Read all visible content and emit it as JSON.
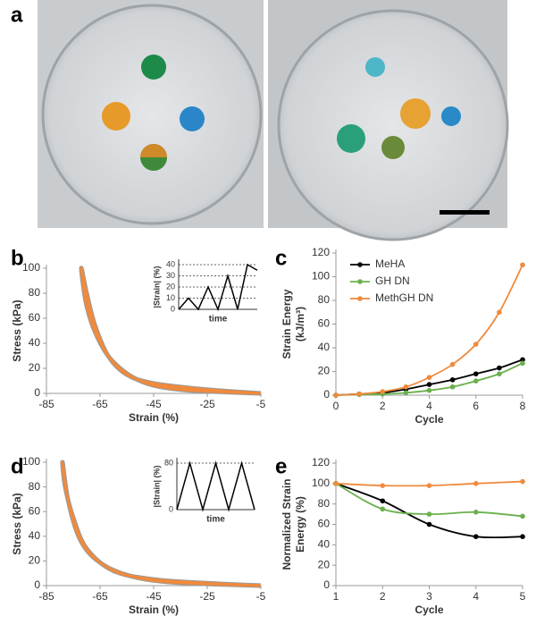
{
  "photo_panel": {
    "label": "a"
  },
  "chart_data": [
    {
      "type": "line",
      "panel_label": "b",
      "xlabel": "Strain (%)",
      "ylabel": "Stress (kPa)",
      "xlim": [
        -85,
        -5
      ],
      "xticks": [
        -85,
        -65,
        -45,
        -25,
        -5
      ],
      "ylim": [
        0,
        100
      ],
      "yticks": [
        0,
        20,
        40,
        60,
        80,
        100
      ],
      "series": [
        {
          "color": "#f08a3c",
          "x": [
            -5,
            -25,
            -45,
            -55,
            -62,
            -67,
            -70,
            -72,
            -70,
            -66,
            -60,
            -50,
            -35,
            -5
          ],
          "values": [
            0,
            3,
            8,
            15,
            30,
            55,
            80,
            100,
            70,
            45,
            25,
            10,
            3,
            0
          ]
        }
      ],
      "inset": {
        "ylabel": "|Strain| (%)",
        "xlabel": "time",
        "ylim": [
          0,
          40
        ],
        "yticks": [
          0,
          10,
          20,
          30,
          40
        ],
        "values": [
          0,
          10,
          0,
          20,
          0,
          30,
          0,
          40,
          35
        ]
      }
    },
    {
      "type": "line",
      "panel_label": "c",
      "xlabel": "Cycle",
      "ylabel": [
        "Strain Energy",
        "(kJ/m³)"
      ],
      "x": [
        0,
        1,
        2,
        3,
        4,
        5,
        6,
        7,
        8
      ],
      "xlim": [
        0,
        8
      ],
      "xticks": [
        0,
        2,
        4,
        6,
        8
      ],
      "ylim": [
        0,
        120
      ],
      "yticks": [
        0,
        20,
        40,
        60,
        80,
        100,
        120
      ],
      "legend": "upper left",
      "series": [
        {
          "name": "MeHA",
          "color": "#000000",
          "values": [
            0,
            1,
            2,
            5,
            9,
            13,
            18,
            23,
            30
          ]
        },
        {
          "name": "GH DN",
          "color": "#6ab04c",
          "values": [
            0,
            0.5,
            1,
            2,
            4,
            7,
            12,
            18,
            27
          ]
        },
        {
          "name": "MethGH DN",
          "color": "#f08a3c",
          "values": [
            0,
            1,
            3,
            7,
            15,
            26,
            43,
            70,
            110
          ]
        }
      ]
    },
    {
      "type": "line",
      "panel_label": "d",
      "xlabel": "Strain (%)",
      "ylabel": "Stress (kPa)",
      "xlim": [
        -85,
        -5
      ],
      "xticks": [
        -85,
        -65,
        -45,
        -25,
        -5
      ],
      "ylim": [
        0,
        100
      ],
      "yticks": [
        0,
        20,
        40,
        60,
        80,
        100
      ],
      "series": [
        {
          "color": "#f08a3c",
          "x": [
            -5,
            -25,
            -45,
            -60,
            -70,
            -75,
            -78,
            -79,
            -77,
            -73,
            -67,
            -57,
            -40,
            -5
          ],
          "values": [
            0,
            2,
            5,
            12,
            30,
            55,
            80,
            100,
            70,
            40,
            22,
            10,
            3,
            0
          ]
        }
      ],
      "inset": {
        "ylabel": "|Strain| (%)",
        "xlabel": "time",
        "ylim": [
          0,
          80
        ],
        "yticks": [
          0,
          80
        ],
        "values": [
          0,
          80,
          0,
          80,
          0,
          80,
          0
        ]
      }
    },
    {
      "type": "line",
      "panel_label": "e",
      "xlabel": "Cycle",
      "ylabel": [
        "Normalized Strain",
        "Energy (%)"
      ],
      "x": [
        1,
        2,
        3,
        4,
        5
      ],
      "xlim": [
        1,
        5
      ],
      "xticks": [
        1,
        2,
        3,
        4,
        5
      ],
      "ylim": [
        0,
        120
      ],
      "yticks": [
        0,
        20,
        40,
        60,
        80,
        100,
        120
      ],
      "series": [
        {
          "color": "#000000",
          "values": [
            100,
            83,
            60,
            48,
            48
          ]
        },
        {
          "color": "#6ab04c",
          "values": [
            100,
            75,
            70,
            72,
            68
          ]
        },
        {
          "color": "#f08a3c",
          "values": [
            100,
            98,
            98,
            100,
            102
          ]
        }
      ]
    }
  ]
}
